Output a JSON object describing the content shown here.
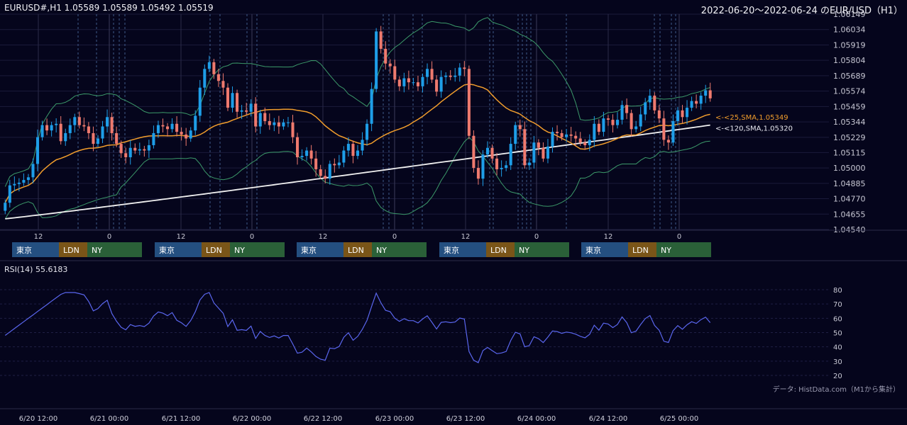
{
  "header": {
    "symbol_ohlc": "EURUSD#,H1 1.05589 1.05589 1.05492 1.05519",
    "range_title": "2022-06-20～2022-06-24 のEUR/USD（H1）"
  },
  "rsi_label": "RSI(14) 55.6183",
  "credit": "データ: HistData.com（M1から集計）",
  "sessions": [
    "東京",
    "LDN",
    "NY"
  ],
  "colors": {
    "background": "#05051c",
    "up_candle": "#1e9ee8",
    "down_candle": "#ef7a6e",
    "sma25": "#f19d2c",
    "sma120": "#f0f0f0",
    "bollinger": "#3c9a6a",
    "rsi": "#5a66ee",
    "tokyo": "#244f80",
    "london": "#7a5518",
    "newyork": "#2a6038"
  },
  "chart_data": [
    {
      "type": "candlestick",
      "title": "EUR/USD (H1)",
      "ylim": [
        1.0454,
        1.06149
      ],
      "y_ticks": [
        "1.06149",
        "1.06034",
        "1.05919",
        "1.05804",
        "1.05689",
        "1.05574",
        "1.05459",
        "1.05344",
        "1.05229",
        "1.05115",
        "1.05000",
        "1.04885",
        "1.04770",
        "1.04655",
        "1.04540"
      ],
      "x_ticks_hour": [
        "12",
        "0",
        "12",
        "0",
        "12",
        "0",
        "12",
        "0",
        "12",
        "0"
      ],
      "close": [
        1.0474,
        1.0487,
        1.0488,
        1.0489,
        1.0491,
        1.0493,
        1.0503,
        1.0523,
        1.0532,
        1.0528,
        1.0532,
        1.0533,
        1.052,
        1.0526,
        1.0532,
        1.0538,
        1.0532,
        1.0531,
        1.0526,
        1.0518,
        1.0522,
        1.0531,
        1.0538,
        1.0526,
        1.0518,
        1.0511,
        1.0508,
        1.0515,
        1.0513,
        1.0514,
        1.0513,
        1.0517,
        1.0526,
        1.0532,
        1.0531,
        1.0529,
        1.0533,
        1.0527,
        1.0525,
        1.0522,
        1.0528,
        1.0539,
        1.056,
        1.0574,
        1.0579,
        1.057,
        1.0565,
        1.056,
        1.0545,
        1.0556,
        1.0542,
        1.0543,
        1.0542,
        1.0548,
        1.0531,
        1.0541,
        1.0535,
        1.0532,
        1.0534,
        1.0531,
        1.0534,
        1.0534,
        1.0523,
        1.0508,
        1.0509,
        1.0513,
        1.0507,
        1.0499,
        1.0494,
        1.0492,
        1.0503,
        1.0502,
        1.0504,
        1.0513,
        1.0518,
        1.0509,
        1.0513,
        1.0521,
        1.0533,
        1.0559,
        1.0602,
        1.0589,
        1.0578,
        1.0576,
        1.0566,
        1.0561,
        1.0567,
        1.0564,
        1.0564,
        1.0561,
        1.0568,
        1.0574,
        1.0566,
        1.0557,
        1.0568,
        1.0569,
        1.0568,
        1.0569,
        1.0575,
        1.0574,
        1.0524,
        1.05,
        1.0492,
        1.051,
        1.0515,
        1.0507,
        1.0499,
        1.05,
        1.0502,
        1.0518,
        1.0532,
        1.0529,
        1.0502,
        1.0504,
        1.0519,
        1.0515,
        1.0507,
        1.0516,
        1.0527,
        1.0526,
        1.0523,
        1.0525,
        1.0524,
        1.0522,
        1.0519,
        1.0517,
        1.0521,
        1.0533,
        1.0527,
        1.0537,
        1.0536,
        1.0532,
        1.0536,
        1.0547,
        1.0541,
        1.0529,
        1.0531,
        1.054,
        1.0549,
        1.0554,
        1.0543,
        1.0537,
        1.0521,
        1.0519,
        1.0535,
        1.0543,
        1.0538,
        1.0545,
        1.055,
        1.0548,
        1.0554,
        1.0558,
        1.0552
      ],
      "sma25_last": "1.05349",
      "sma120_last": "1.05320",
      "annotations": [
        "<-<25,SMA,1.05349",
        "<-<120,SMA,1.05320"
      ]
    },
    {
      "type": "line",
      "title": "RSI(14) 55.6183",
      "ylim": [
        20,
        80
      ],
      "y_ticks": [
        "80",
        "70",
        "60",
        "50",
        "40",
        "30",
        "20"
      ],
      "x_ticks": [
        "6/20 12:00",
        "6/21 00:00",
        "6/21 12:00",
        "6/22 00:00",
        "6/22 12:00",
        "6/23 00:00",
        "6/23 12:00",
        "6/24 00:00",
        "6/24 12:00",
        "6/25 00:00"
      ]
    }
  ]
}
